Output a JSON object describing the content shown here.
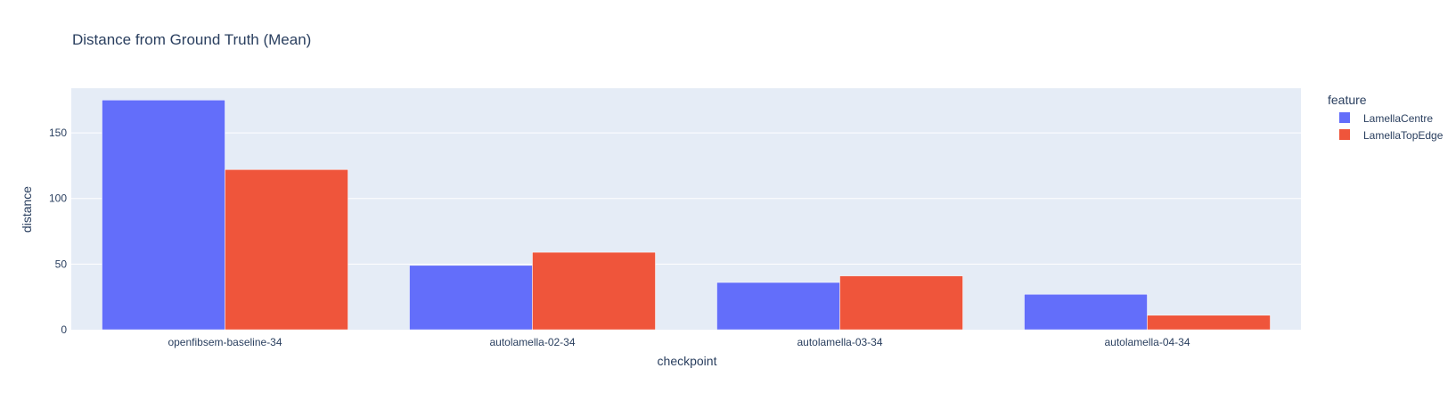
{
  "chart_data": {
    "type": "bar",
    "title": "Distance from Ground Truth (Mean)",
    "xlabel": "checkpoint",
    "ylabel": "distance",
    "categories": [
      "openfibsem-baseline-34",
      "autolamella-02-34",
      "autolamella-03-34",
      "autolamella-04-34"
    ],
    "series": [
      {
        "name": "LamellaCentre",
        "color": "#636efa",
        "values": [
          175,
          49,
          36,
          27
        ]
      },
      {
        "name": "LamellaTopEdge",
        "color": "#ef553b",
        "values": [
          122,
          59,
          41,
          11
        ]
      }
    ],
    "yticks": [
      0,
      50,
      100,
      150
    ],
    "ylim": [
      0,
      184
    ],
    "grid": true,
    "legend": {
      "title": "feature",
      "position": "top-right"
    },
    "plot_bgcolor": "#e5ecf6",
    "gridcolor": "#ffffff"
  }
}
